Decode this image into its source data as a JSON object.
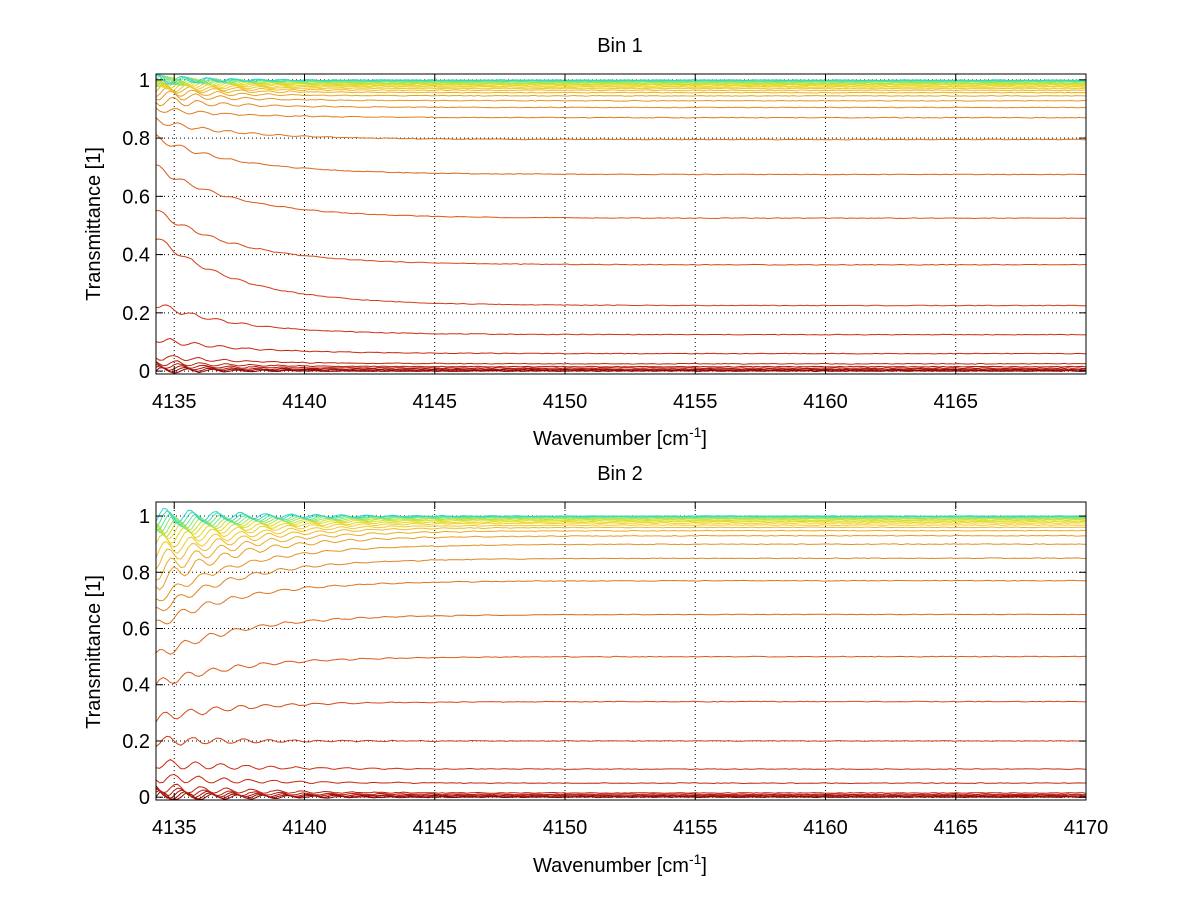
{
  "chart_data": [
    {
      "type": "line",
      "title": "Bin 1",
      "xlabel": "Wavenumber [cm",
      "xlabel_sup": "-1",
      "xlabel_end": "]",
      "ylabel": "Transmittance [1]",
      "xlim": [
        4134.3,
        4170
      ],
      "ylim": [
        -0.01,
        1.02
      ],
      "xticks": [
        4135,
        4140,
        4145,
        4150,
        4155,
        4160,
        4165
      ],
      "xtick_labels": [
        "4135",
        "4140",
        "4145",
        "4150",
        "4155",
        "4160",
        "4165"
      ],
      "yticks": [
        0,
        0.2,
        0.4,
        0.6,
        0.8,
        1
      ],
      "ytick_labels": [
        "0",
        "0.2",
        "0.4",
        "0.6",
        "0.8",
        "1"
      ],
      "grid": true,
      "series_levels": [
        0.0,
        0.003,
        0.006,
        0.01,
        0.015,
        0.025,
        0.06,
        0.125,
        0.225,
        0.365,
        0.525,
        0.675,
        0.795,
        0.87,
        0.905,
        0.928,
        0.945,
        0.956,
        0.964,
        0.97,
        0.975,
        0.979,
        0.983,
        0.986,
        0.989,
        0.992,
        0.994,
        0.996,
        0.998,
        0.999
      ],
      "series_start_levels": [
        0.002,
        0.006,
        0.012,
        0.02,
        0.03,
        0.05,
        0.11,
        0.23,
        0.46,
        0.55,
        0.7,
        0.8,
        0.86,
        0.9,
        0.93,
        0.95,
        0.96,
        0.97,
        0.975,
        0.98,
        0.985,
        0.99,
        0.992,
        0.994,
        0.995,
        0.996,
        0.997,
        0.998,
        0.999,
        1.0
      ],
      "colormap": [
        "#8b0000",
        "#b41a0a",
        "#cc2a10",
        "#d8541a",
        "#e07e20",
        "#e8a526",
        "#f2cc2a",
        "#dede20",
        "#7fe87a",
        "#2ed6c8"
      ]
    },
    {
      "type": "line",
      "title": "Bin 2",
      "xlabel": "Wavenumber [cm",
      "xlabel_sup": "-1",
      "xlabel_end": "]",
      "ylabel": "Transmittance [1]",
      "xlim": [
        4134.3,
        4170
      ],
      "ylim": [
        -0.01,
        1.05
      ],
      "xticks": [
        4135,
        4140,
        4145,
        4150,
        4155,
        4160,
        4165,
        4170
      ],
      "xtick_labels": [
        "4135",
        "4140",
        "4145",
        "4150",
        "4155",
        "4160",
        "4165",
        "4170"
      ],
      "yticks": [
        0,
        0.2,
        0.4,
        0.6,
        0.8,
        1
      ],
      "ytick_labels": [
        "0",
        "0.2",
        "0.4",
        "0.6",
        "0.8",
        "1"
      ],
      "grid": true,
      "series_levels": [
        0.0,
        0.003,
        0.006,
        0.01,
        0.015,
        0.05,
        0.1,
        0.2,
        0.34,
        0.5,
        0.65,
        0.77,
        0.85,
        0.9,
        0.93,
        0.948,
        0.96,
        0.968,
        0.975,
        0.98,
        0.985,
        0.989,
        0.992,
        0.995,
        0.997,
        0.999,
        1.0
      ],
      "series_start_levels": [
        0.002,
        0.006,
        0.012,
        0.02,
        0.035,
        0.07,
        0.12,
        0.2,
        0.28,
        0.4,
        0.5,
        0.61,
        0.66,
        0.7,
        0.76,
        0.8,
        0.84,
        0.87,
        0.9,
        0.92,
        0.94,
        0.95,
        0.96,
        0.97,
        0.98,
        0.99,
        1.0
      ],
      "colormap": [
        "#8b0000",
        "#b41a0a",
        "#cc2a10",
        "#d8541a",
        "#e07e20",
        "#e8a526",
        "#f2cc2a",
        "#dede20",
        "#7fe87a",
        "#2ed6c8"
      ]
    }
  ]
}
